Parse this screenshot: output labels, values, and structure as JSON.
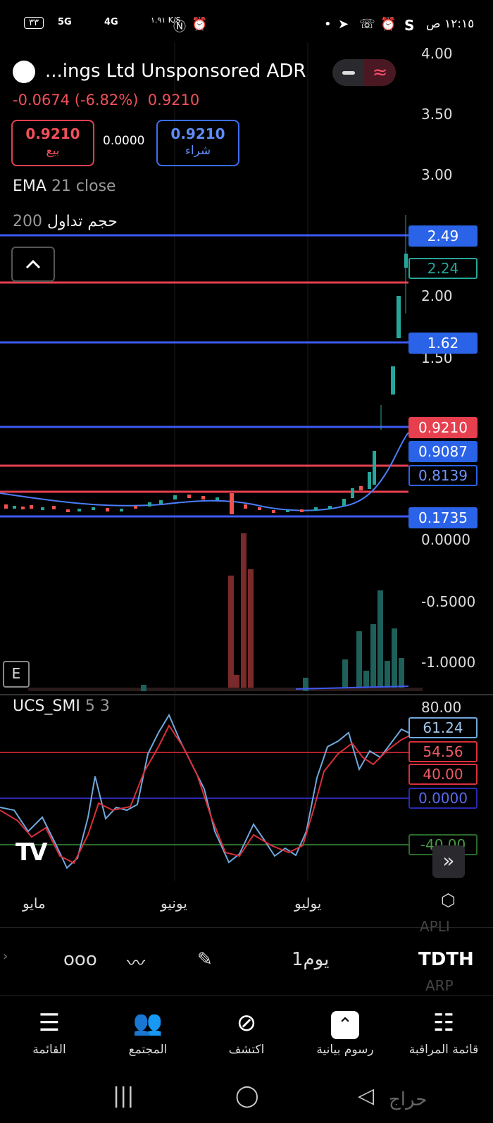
{
  "status_bar": {
    "time": "١٢:١٥ ص",
    "carrier": "S",
    "net_speed": "١.٩١ K/S",
    "battery": "٣٣",
    "network1": "5G",
    "network2": "4G"
  },
  "header": {
    "symbol_name": "...ings Ltd Unsponsored ADR",
    "change": "-0.0674 (-6.82%)",
    "last_price": "0.9210"
  },
  "trade": {
    "sell_price": "0.9210",
    "sell_label": "بيع",
    "spread": "0.0000",
    "buy_price": "0.9210",
    "buy_label": "شراء"
  },
  "indicators": {
    "ema_name": "EMA",
    "ema_params": "21 close",
    "volume_name": "حجم تداول",
    "volume_param": "200",
    "smi_name": "UCS_SMI",
    "smi_params": "5 3"
  },
  "price_axis": {
    "ticks": [
      "4.00",
      "3.50",
      "3.00",
      "2.00",
      "1.50",
      "0.0000",
      "-0.5000",
      "-1.0000"
    ]
  },
  "price_tags": [
    {
      "value": "2.49",
      "style": "blue"
    },
    {
      "value": "2.24",
      "style": "green"
    },
    {
      "value": "1.62",
      "style": "blue"
    },
    {
      "value": "0.9210",
      "style": "red"
    },
    {
      "value": "0.9087",
      "style": "blue"
    },
    {
      "value": "0.8139",
      "style": "outline-blue"
    },
    {
      "value": "0.1735",
      "style": "blue"
    }
  ],
  "smi_axis": {
    "top": "80.00",
    "tags": [
      {
        "value": "61.24",
        "style": "outline-lightblue"
      },
      {
        "value": "54.56",
        "style": "outline-red"
      },
      {
        "value": "40.00",
        "style": "outline-red"
      },
      {
        "value": "0.0000",
        "style": "outline-blue"
      },
      {
        "value": "-40.00",
        "style": "outline-green"
      }
    ]
  },
  "e_button": "E",
  "time_axis": {
    "months": [
      "مايو",
      "يونيو",
      "يوليو"
    ]
  },
  "toolbar": {
    "interval": "1يوم",
    "symbol": "TDTH",
    "symbol_prev": "APLI",
    "symbol_next": "ARP"
  },
  "bottom_nav": [
    {
      "label": "القائمة",
      "icon": "menu-icon"
    },
    {
      "label": "المجتمع",
      "icon": "community-icon"
    },
    {
      "label": "اكتشف",
      "icon": "compass-icon"
    },
    {
      "label": "رسوم بيانية",
      "icon": "chart-icon"
    },
    {
      "label": "قائمة المراقبة",
      "icon": "watchlist-icon"
    }
  ],
  "watermark": "حراج",
  "colors": {
    "up": "#26a69a",
    "down": "#ef5350",
    "blue_line": "#3d5af1",
    "red_line": "#e6404f",
    "smi_fast": "#6fa8dc",
    "smi_slow": "#d9303a"
  },
  "chart_data": {
    "type": "candlestick",
    "price_series": {
      "last": 0.921,
      "levels": [
        2.49,
        2.12,
        1.62,
        0.921,
        0.55,
        0.25,
        0.1735
      ],
      "candles_recent": [
        0.18,
        0.2,
        0.23,
        0.3,
        0.35,
        0.45,
        0.6,
        0.9,
        1.2,
        1.5,
        1.9,
        2.24
      ]
    },
    "smi": {
      "fast_last": 61.24,
      "slow_last": 54.56,
      "levels": [
        40,
        0,
        -40
      ]
    }
  }
}
